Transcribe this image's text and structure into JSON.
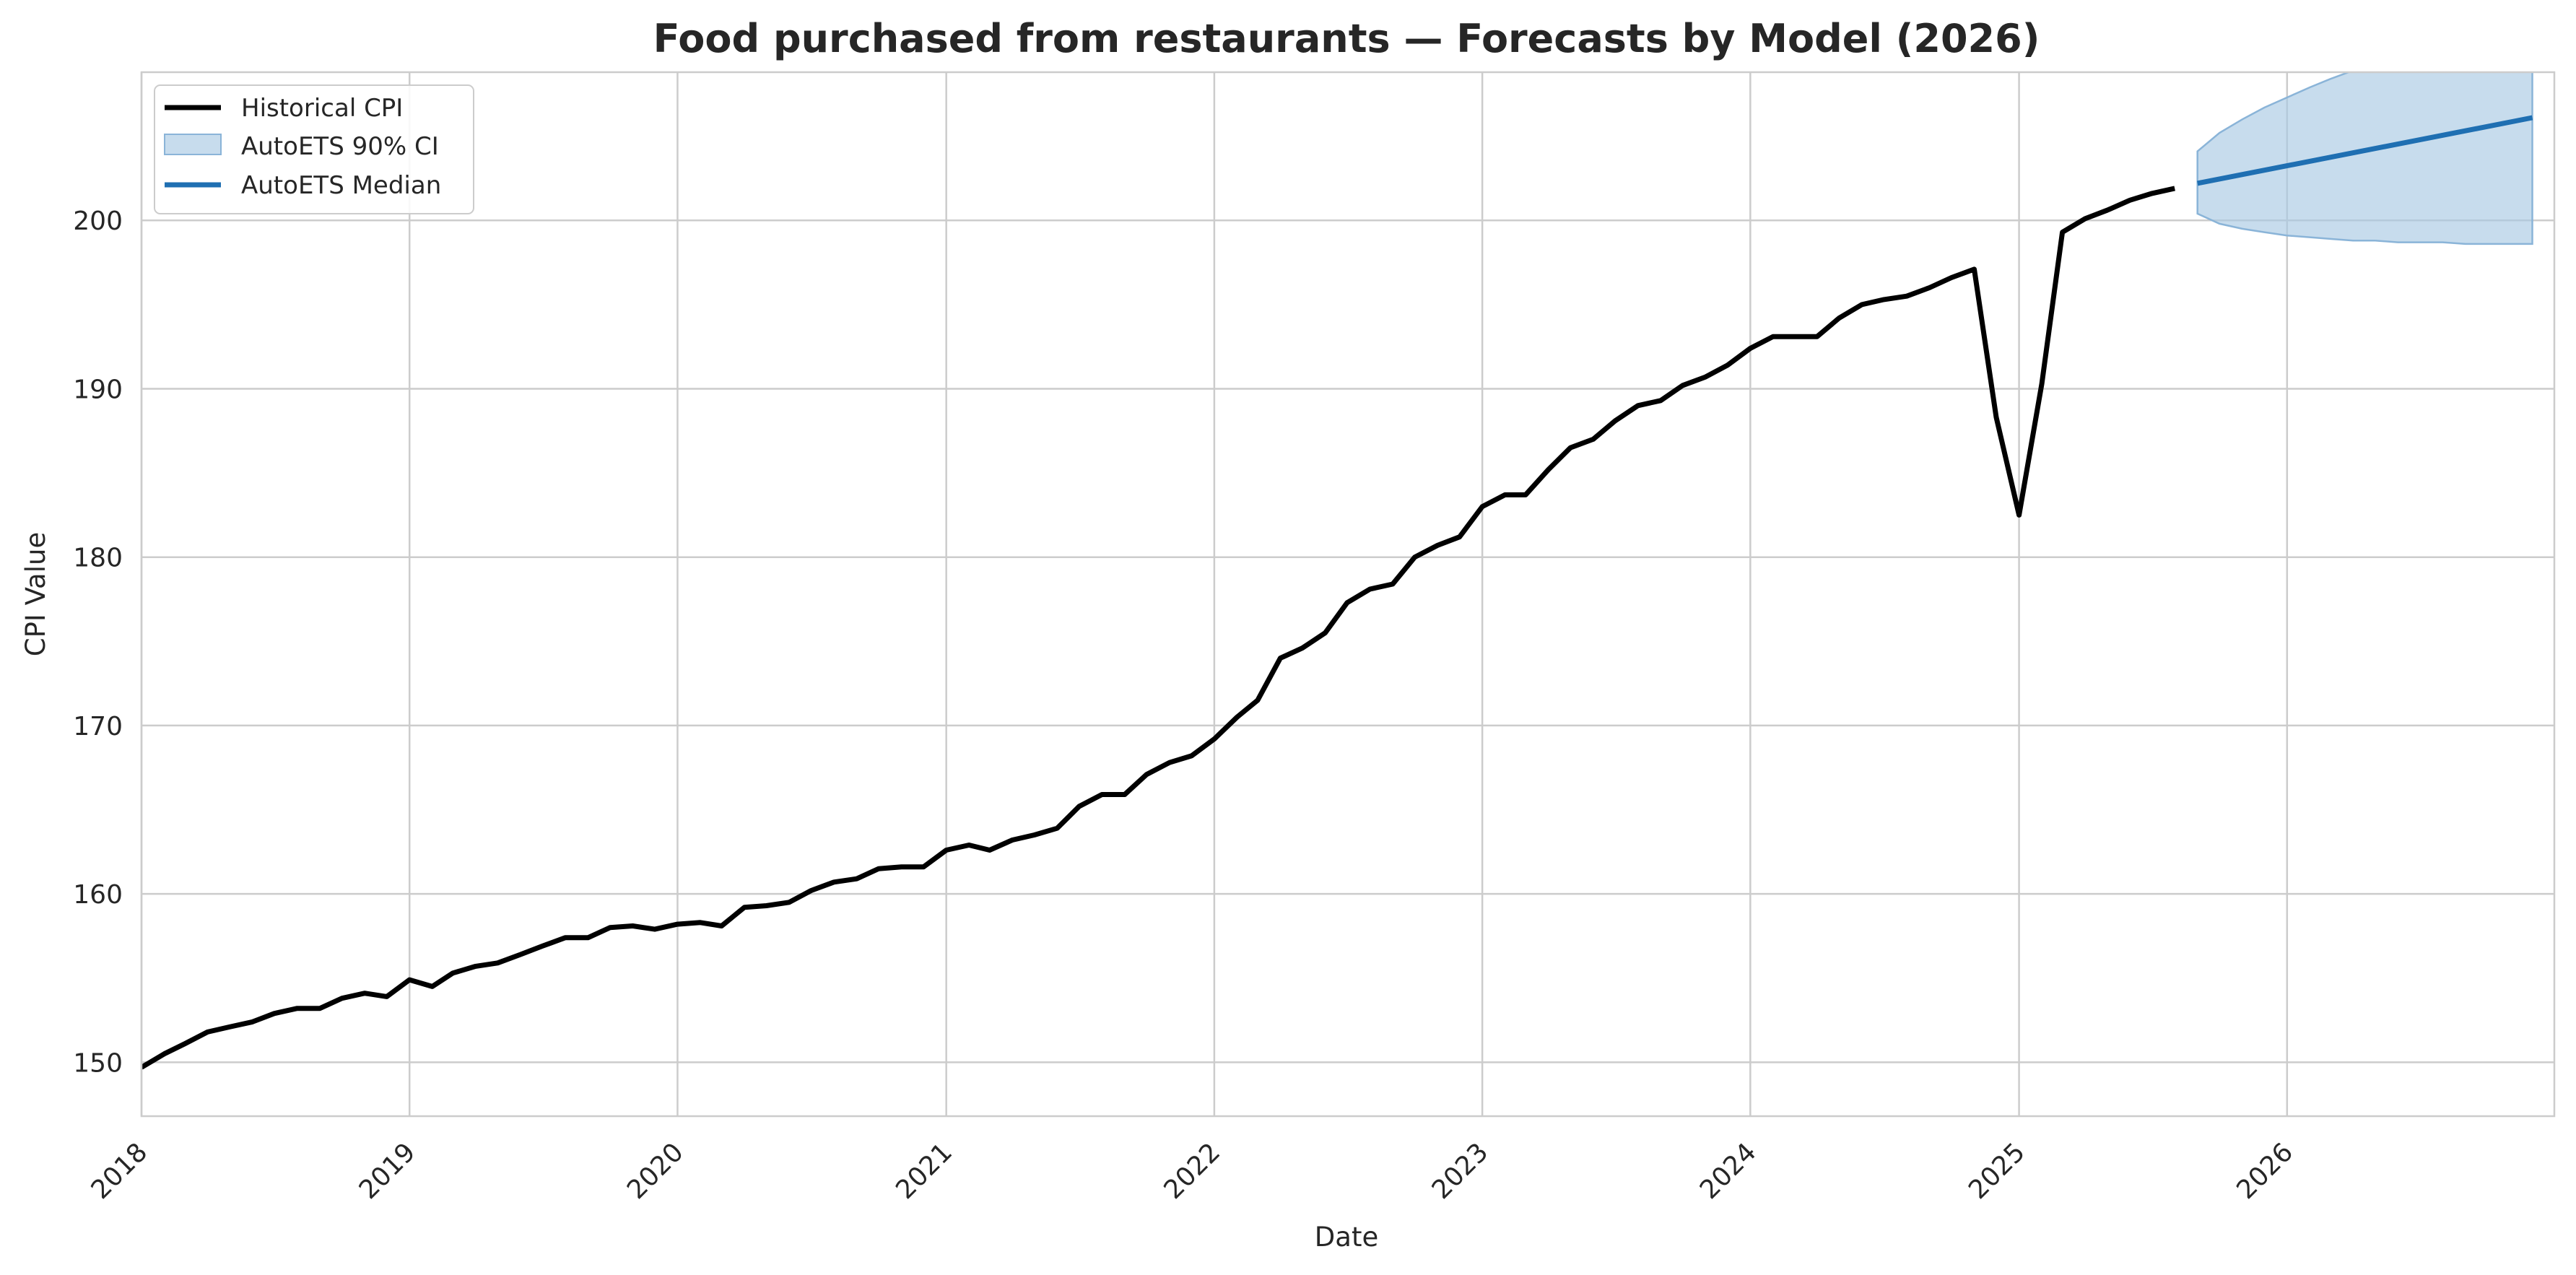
{
  "chart_data": {
    "type": "line",
    "title": "Food purchased from restaurants — Forecasts by Model (2026)",
    "xlabel": "Date",
    "ylabel": "CPI Value",
    "xlim": [
      "2018-01-01",
      "2026-12-31"
    ],
    "ylim": [
      146.8,
      208.8
    ],
    "x_ticks": [
      "2018",
      "2019",
      "2020",
      "2021",
      "2022",
      "2023",
      "2024",
      "2025",
      "2026"
    ],
    "y_ticks": [
      150,
      160,
      170,
      180,
      190,
      200
    ],
    "grid": true,
    "legend_position": "top-left",
    "colors": {
      "historical": "#000000",
      "median": "#1f6fb2",
      "ci_fill": "#a9c9e4",
      "ci_edge": "#8ab4d8",
      "grid": "#cccccc",
      "frame": "#cccccc"
    },
    "legend": [
      {
        "label": "Historical CPI",
        "kind": "line",
        "color": "#000000"
      },
      {
        "label": "AutoETS 90% CI",
        "kind": "patch",
        "color": "#a9c9e4"
      },
      {
        "label": "AutoETS Median",
        "kind": "line",
        "color": "#1f6fb2"
      }
    ],
    "series": [
      {
        "name": "Historical CPI",
        "x": [
          "2018-01",
          "2018-02",
          "2018-03",
          "2018-04",
          "2018-05",
          "2018-06",
          "2018-07",
          "2018-08",
          "2018-09",
          "2018-10",
          "2018-11",
          "2018-12",
          "2019-01",
          "2019-02",
          "2019-03",
          "2019-04",
          "2019-05",
          "2019-06",
          "2019-07",
          "2019-08",
          "2019-09",
          "2019-10",
          "2019-11",
          "2019-12",
          "2020-01",
          "2020-02",
          "2020-03",
          "2020-04",
          "2020-05",
          "2020-06",
          "2020-07",
          "2020-08",
          "2020-09",
          "2020-10",
          "2020-11",
          "2020-12",
          "2021-01",
          "2021-02",
          "2021-03",
          "2021-04",
          "2021-05",
          "2021-06",
          "2021-07",
          "2021-08",
          "2021-09",
          "2021-10",
          "2021-11",
          "2021-12",
          "2022-01",
          "2022-02",
          "2022-03",
          "2022-04",
          "2022-05",
          "2022-06",
          "2022-07",
          "2022-08",
          "2022-09",
          "2022-10",
          "2022-11",
          "2022-12",
          "2023-01",
          "2023-02",
          "2023-03",
          "2023-04",
          "2023-05",
          "2023-06",
          "2023-07",
          "2023-08",
          "2023-09",
          "2023-10",
          "2023-11",
          "2023-12",
          "2024-01",
          "2024-02",
          "2024-03",
          "2024-04",
          "2024-05",
          "2024-06",
          "2024-07",
          "2024-08",
          "2024-09",
          "2024-10",
          "2024-11",
          "2024-12",
          "2025-01",
          "2025-02",
          "2025-03",
          "2025-04",
          "2025-05",
          "2025-06",
          "2025-07",
          "2025-08"
        ],
        "y": [
          149.7,
          150.5,
          151.1,
          151.8,
          152.1,
          152.4,
          152.9,
          153.2,
          153.2,
          153.8,
          154.1,
          153.9,
          154.9,
          154.5,
          155.3,
          155.7,
          155.9,
          156.4,
          156.9,
          157.4,
          157.4,
          158.0,
          158.1,
          157.9,
          158.2,
          158.3,
          158.1,
          159.2,
          159.3,
          159.5,
          160.2,
          160.7,
          160.9,
          161.5,
          161.6,
          161.6,
          162.6,
          162.9,
          162.6,
          163.2,
          163.5,
          163.9,
          165.2,
          165.9,
          165.9,
          167.1,
          167.8,
          168.2,
          169.2,
          170.5,
          171.5,
          174.0,
          174.6,
          175.5,
          177.3,
          178.1,
          178.4,
          180.0,
          180.7,
          181.2,
          183.0,
          183.7,
          183.7,
          185.2,
          186.5,
          187.0,
          188.1,
          189.0,
          189.3,
          190.2,
          190.7,
          191.4,
          192.4,
          193.1,
          193.1,
          193.1,
          194.2,
          195.0,
          195.3,
          195.5,
          196.0,
          196.6,
          197.1,
          188.3,
          182.5,
          190.3,
          199.3,
          200.1,
          200.6,
          201.2,
          201.6,
          201.9
        ]
      },
      {
        "name": "AutoETS Median",
        "x": [
          "2025-09",
          "2026-12"
        ],
        "y": [
          202.2,
          206.1
        ]
      }
    ],
    "band": {
      "name": "AutoETS 90% CI",
      "x": [
        "2025-09",
        "2025-10",
        "2025-11",
        "2025-12",
        "2026-01",
        "2026-02",
        "2026-03",
        "2026-04",
        "2026-05",
        "2026-06",
        "2026-07",
        "2026-08",
        "2026-09",
        "2026-10",
        "2026-11",
        "2026-12"
      ],
      "lower": [
        200.4,
        199.8,
        199.5,
        199.3,
        199.1,
        199.0,
        198.9,
        198.8,
        198.8,
        198.7,
        198.7,
        198.7,
        198.6,
        198.6,
        198.6,
        198.6
      ],
      "upper": [
        204.1,
        205.2,
        206.0,
        206.7,
        207.3,
        207.9,
        208.4,
        208.9,
        209.4,
        209.8,
        210.2,
        210.6,
        211.0,
        211.4,
        211.8,
        212.1
      ]
    }
  }
}
